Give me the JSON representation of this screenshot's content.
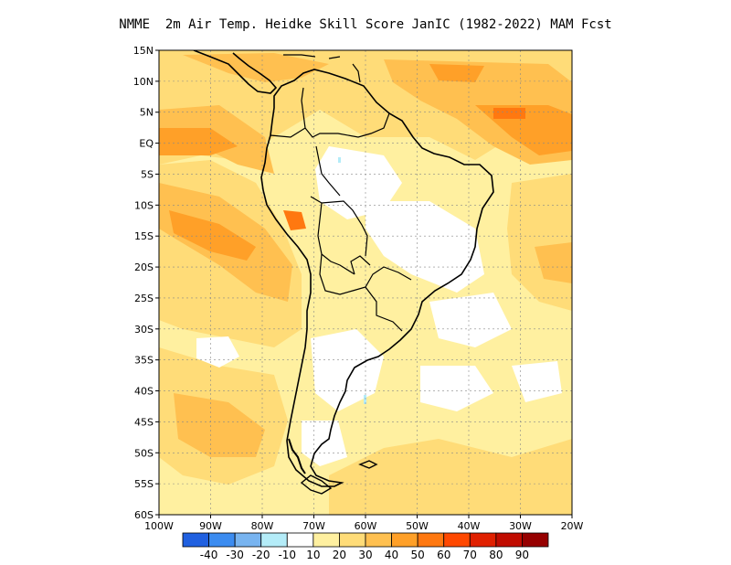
{
  "title": "NMME  2m Air Temp. Heidke Skill Score JanIC (1982-2022) MAM Fcst",
  "lat_labels": [
    "15N",
    "10N",
    "5N",
    "EQ",
    "5S",
    "10S",
    "15S",
    "20S",
    "25S",
    "30S",
    "35S",
    "40S",
    "45S",
    "50S",
    "55S",
    "60S"
  ],
  "lon_labels": [
    "100W",
    "90W",
    "80W",
    "70W",
    "60W",
    "50W",
    "40W",
    "30W",
    "20W"
  ],
  "colorbar": {
    "colors": [
      "#2060e0",
      "#3c8cf0",
      "#78b4f0",
      "#b4ecf8",
      "#ffffff",
      "#fff0a0",
      "#ffdc78",
      "#ffc050",
      "#ffa028",
      "#ff7810",
      "#ff4800",
      "#e02000",
      "#c00c00",
      "#960000"
    ],
    "labels": [
      "-40",
      "-30",
      "-20",
      "-10",
      "10",
      "20",
      "30",
      "40",
      "50",
      "60",
      "70",
      "80",
      "90"
    ]
  },
  "shading": {
    "background": "#fff0a0",
    "levels": [
      "#ffdc78",
      "#ffc050",
      "#ffa028",
      "#ff7810"
    ],
    "clear": "#ffffff",
    "negative": "#b4ecf8"
  }
}
